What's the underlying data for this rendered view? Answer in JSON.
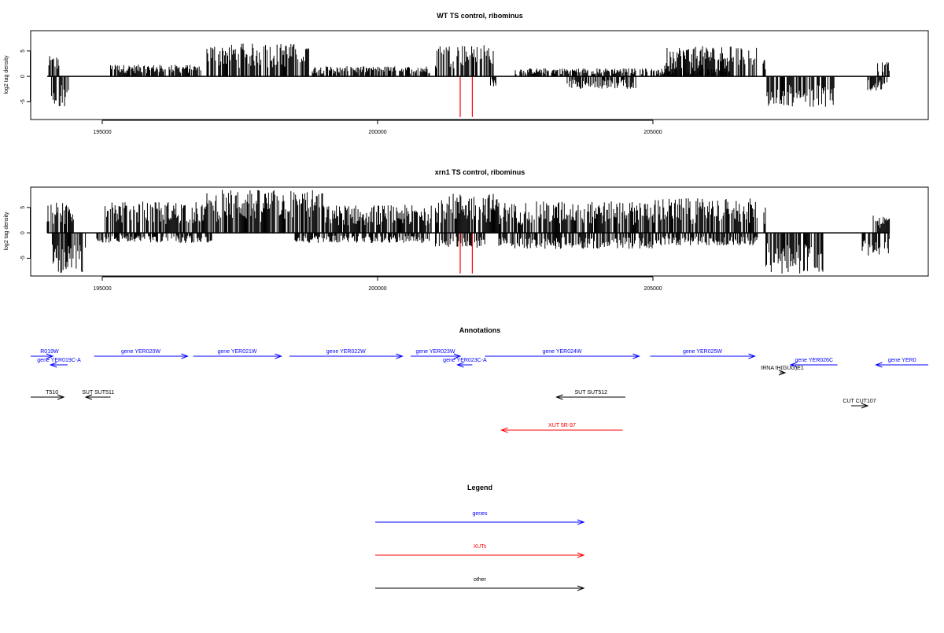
{
  "chart_data": [
    {
      "type": "bar",
      "title": "WT TS control, ribominus",
      "ylabel": "log2 tag density",
      "xlim": [
        193700,
        210000
      ],
      "ylim": [
        -8.5,
        9
      ],
      "xticks": [
        195000,
        200000,
        205000
      ],
      "yticks": [
        -5,
        0,
        5
      ],
      "grid": false,
      "note_marks": [
        201500,
        201720
      ],
      "plus_regions": [
        {
          "start": 194030,
          "end": 194220,
          "max": 4.0
        },
        {
          "start": 195150,
          "end": 196800,
          "max": 2.3
        },
        {
          "start": 196900,
          "end": 198750,
          "max": 6.5
        },
        {
          "start": 198800,
          "end": 200950,
          "max": 2.0
        },
        {
          "start": 201050,
          "end": 202100,
          "max": 6.3
        },
        {
          "start": 202500,
          "end": 204900,
          "max": 1.6
        },
        {
          "start": 204950,
          "end": 206400,
          "max": 1.5
        },
        {
          "start": 205200,
          "end": 206900,
          "max": 6.0
        },
        {
          "start": 207000,
          "end": 207050,
          "max": 5.0
        },
        {
          "start": 209080,
          "end": 209300,
          "max": 2.8
        }
      ],
      "minus_regions": [
        {
          "start": 194050,
          "end": 194420,
          "min": -6.0
        },
        {
          "start": 202050,
          "end": 202150,
          "min": -2.0
        },
        {
          "start": 203400,
          "end": 204700,
          "min": -2.5
        },
        {
          "start": 207070,
          "end": 208300,
          "min": -6.0
        },
        {
          "start": 208900,
          "end": 209300,
          "min": -3.0
        }
      ]
    },
    {
      "type": "bar",
      "title": "xrn1 TS control, ribominus",
      "ylabel": "log2 tag density",
      "xlim": [
        193700,
        210000
      ],
      "ylim": [
        -8.5,
        9
      ],
      "xticks": [
        195000,
        200000,
        205000
      ],
      "yticks": [
        -5,
        0,
        5
      ],
      "grid": false,
      "note_marks": [
        201500,
        201720
      ],
      "plus_regions": [
        {
          "start": 194000,
          "end": 194500,
          "max": 6.0
        },
        {
          "start": 195050,
          "end": 196900,
          "max": 6.2
        },
        {
          "start": 196900,
          "end": 199000,
          "max": 8.5
        },
        {
          "start": 199000,
          "end": 201000,
          "max": 5.5
        },
        {
          "start": 201050,
          "end": 202200,
          "max": 7.8
        },
        {
          "start": 202200,
          "end": 205000,
          "max": 6.2
        },
        {
          "start": 205000,
          "end": 206900,
          "max": 6.8
        },
        {
          "start": 207000,
          "end": 207050,
          "max": 5.2
        },
        {
          "start": 209000,
          "end": 209300,
          "max": 3.4
        }
      ],
      "minus_regions": [
        {
          "start": 194050,
          "end": 194700,
          "min": -8.0
        },
        {
          "start": 194900,
          "end": 197000,
          "min": -2.0
        },
        {
          "start": 198500,
          "end": 200950,
          "min": -2.0
        },
        {
          "start": 201050,
          "end": 202000,
          "min": -3.0
        },
        {
          "start": 202200,
          "end": 205000,
          "min": -3.2
        },
        {
          "start": 205050,
          "end": 206900,
          "min": -2.5
        },
        {
          "start": 207050,
          "end": 208100,
          "min": -8.0
        },
        {
          "start": 208800,
          "end": 209300,
          "min": -4.5
        }
      ]
    }
  ],
  "annotations": {
    "title": "Annotations",
    "features": [
      {
        "label": "R019W",
        "start": 193650,
        "end": 194100,
        "strand": "+",
        "color": "#0000ff",
        "row": 0
      },
      {
        "label": "gene YER019C-A",
        "start": 194060,
        "end": 194370,
        "strand": "-",
        "color": "#0000ff",
        "row": 1
      },
      {
        "label": "gene YER020W",
        "start": 194850,
        "end": 196550,
        "strand": "+",
        "color": "#0000ff",
        "row": 0
      },
      {
        "label": "gene YER021W",
        "start": 196650,
        "end": 198250,
        "strand": "+",
        "color": "#0000ff",
        "row": 0
      },
      {
        "label": "gene YER022W",
        "start": 198400,
        "end": 200450,
        "strand": "+",
        "color": "#0000ff",
        "row": 0
      },
      {
        "label": "gene YER023W",
        "start": 200600,
        "end": 201500,
        "strand": "+",
        "color": "#0000ff",
        "row": 0
      },
      {
        "label": "gene YER023C-A",
        "start": 201450,
        "end": 201720,
        "strand": "-",
        "color": "#0000ff",
        "row": 1
      },
      {
        "label": "gene YER024W",
        "start": 201950,
        "end": 204750,
        "strand": "+",
        "color": "#0000ff",
        "row": 0
      },
      {
        "label": "gene YER025W",
        "start": 204950,
        "end": 206850,
        "strand": "+",
        "color": "#0000ff",
        "row": 0
      },
      {
        "label": "gene YER026C",
        "start": 207500,
        "end": 208350,
        "strand": "-",
        "color": "#0000ff",
        "row": 1
      },
      {
        "label": "gene YER0",
        "start": 209050,
        "end": 210000,
        "strand": "-",
        "color": "#0000ff",
        "row": 1
      },
      {
        "label": "tRNA tH(GUG)E1",
        "start": 207300,
        "end": 207400,
        "strand": "+",
        "color": "#000000",
        "row": 2
      },
      {
        "label": "T510",
        "start": 193650,
        "end": 194300,
        "strand": "+",
        "color": "#000000",
        "row": 3
      },
      {
        "label": "SUT SUT511",
        "start": 194700,
        "end": 195150,
        "strand": "-",
        "color": "#000000",
        "row": 3
      },
      {
        "label": "SUT SUT512",
        "start": 203250,
        "end": 204500,
        "strand": "-",
        "color": "#000000",
        "row": 3
      },
      {
        "label": "CUT CUT107",
        "start": 208600,
        "end": 208900,
        "strand": "+",
        "color": "#000000",
        "row": 4
      },
      {
        "label": "XUT 5R-97",
        "start": 202250,
        "end": 204450,
        "strand": "-",
        "color": "#ff0000",
        "row": 5
      }
    ]
  },
  "legend": {
    "title": "Legend",
    "items": [
      {
        "label": "genes",
        "color": "#0000ff"
      },
      {
        "label": "XUTs",
        "color": "#ff0000"
      },
      {
        "label": "other",
        "color": "#000000"
      }
    ]
  }
}
